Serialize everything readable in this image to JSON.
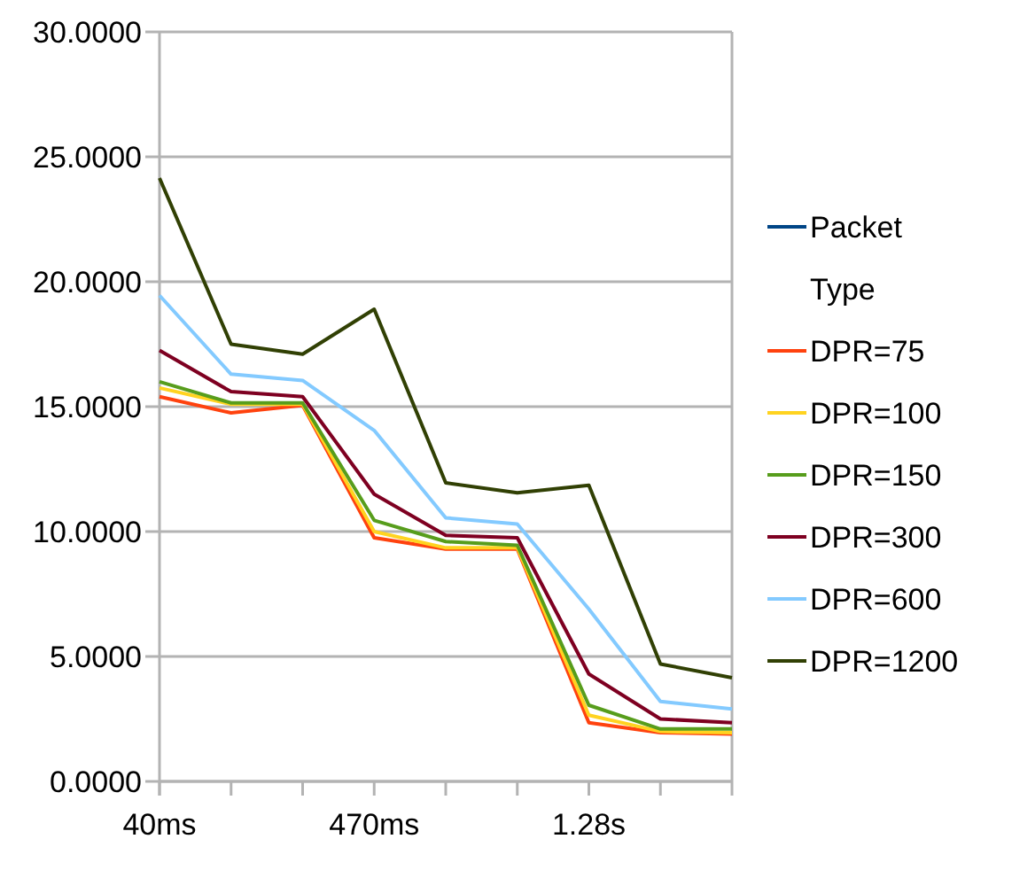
{
  "chart_data": {
    "type": "line",
    "categories": [
      "40ms",
      null,
      null,
      "470ms",
      null,
      null,
      "1.28s",
      null,
      null
    ],
    "ylim": [
      0,
      30
    ],
    "yticks": [
      {
        "value": 0,
        "label": "0.0000"
      },
      {
        "value": 5,
        "label": "5.0000"
      },
      {
        "value": 10,
        "label": "10.0000"
      },
      {
        "value": 15,
        "label": "15.0000"
      },
      {
        "value": 20,
        "label": "20.0000"
      },
      {
        "value": 25,
        "label": "25.0000"
      },
      {
        "value": 30,
        "label": "30.0000"
      }
    ],
    "grid": "y",
    "legend": "right",
    "marker": "none",
    "line_style": "solid",
    "series": [
      {
        "name": "Packet Type",
        "color": "#004586",
        "values": [
          null,
          null,
          null,
          null,
          null,
          null,
          null,
          null,
          null
        ]
      },
      {
        "name": "DPR=75",
        "color": "#ff420e",
        "values": [
          15.4,
          14.75,
          15.05,
          9.75,
          9.3,
          9.3,
          2.35,
          1.95,
          1.9
        ]
      },
      {
        "name": "DPR=100",
        "color": "#ffd320",
        "values": [
          15.75,
          15.1,
          15.1,
          10.0,
          9.35,
          9.35,
          2.65,
          2.0,
          1.95
        ]
      },
      {
        "name": "DPR=150",
        "color": "#579d1c",
        "values": [
          16.0,
          15.15,
          15.15,
          10.45,
          9.6,
          9.45,
          3.05,
          2.1,
          2.1
        ]
      },
      {
        "name": "DPR=300",
        "color": "#7e0021",
        "values": [
          17.25,
          15.6,
          15.4,
          11.5,
          9.85,
          9.75,
          4.3,
          2.5,
          2.35
        ]
      },
      {
        "name": "DPR=600",
        "color": "#83caff",
        "values": [
          19.45,
          16.3,
          16.05,
          14.05,
          10.55,
          10.3,
          6.9,
          3.2,
          2.9
        ]
      },
      {
        "name": "DPR=1200",
        "color": "#314004",
        "values": [
          24.15,
          17.5,
          17.1,
          18.9,
          11.95,
          11.55,
          11.85,
          4.7,
          4.15
        ]
      }
    ]
  }
}
